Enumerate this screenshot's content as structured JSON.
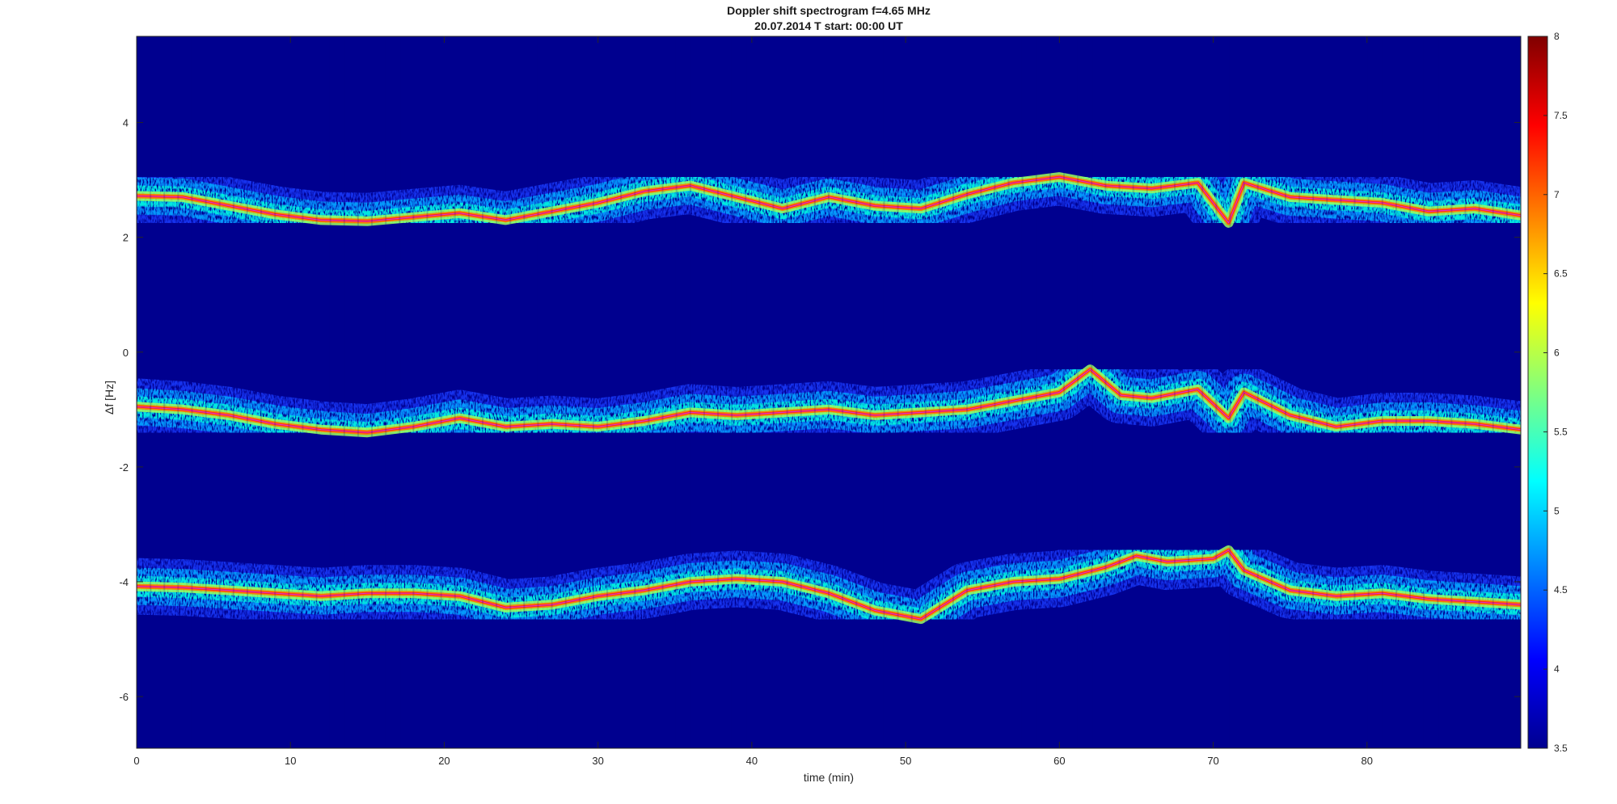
{
  "chart_data": {
    "type": "heatmap",
    "title": "Doppler shift spectrogram f=4.65 MHz",
    "subtitle": "20.07.2014   T start: 00:00 UT",
    "xlabel": "time (min)",
    "ylabel": "Δf [Hz]",
    "xlim": [
      0,
      90
    ],
    "ylim": [
      -6.9,
      5.5
    ],
    "xticks": [
      "0",
      "10",
      "20",
      "30",
      "40",
      "50",
      "60",
      "70",
      "80"
    ],
    "yticks": [
      "4",
      "2",
      "0",
      "-2",
      "-4",
      "-6"
    ],
    "grid": false,
    "background_color": "#00008f",
    "colorbar": {
      "range": [
        3.5,
        8
      ],
      "ticks": [
        "8",
        "7.5",
        "7",
        "6.5",
        "6",
        "5.5",
        "5",
        "4.5",
        "4",
        "3.5"
      ],
      "colormap": "jet"
    },
    "series": [
      {
        "x": [
          0,
          3,
          6,
          9,
          12,
          15,
          18,
          21,
          24,
          27,
          30,
          33,
          36,
          39,
          42,
          45,
          48,
          51,
          54,
          57,
          60,
          63,
          66,
          69,
          71,
          72,
          75,
          78,
          81,
          84,
          87,
          90
        ],
        "values": [
          2.72,
          2.7,
          2.55,
          2.4,
          2.3,
          2.28,
          2.35,
          2.42,
          2.3,
          2.45,
          2.6,
          2.8,
          2.9,
          2.7,
          2.5,
          2.7,
          2.55,
          2.5,
          2.75,
          2.95,
          3.05,
          2.9,
          2.85,
          2.95,
          2.25,
          2.95,
          2.7,
          2.65,
          2.6,
          2.45,
          2.5,
          2.38
        ]
      },
      {
        "x": [
          0,
          3,
          6,
          9,
          12,
          15,
          18,
          21,
          24,
          27,
          30,
          33,
          36,
          39,
          42,
          45,
          48,
          51,
          54,
          57,
          60,
          62,
          64,
          66,
          69,
          71,
          72,
          75,
          78,
          81,
          84,
          87,
          90
        ],
        "values": [
          -0.95,
          -1.0,
          -1.1,
          -1.25,
          -1.35,
          -1.4,
          -1.3,
          -1.15,
          -1.3,
          -1.25,
          -1.3,
          -1.2,
          -1.05,
          -1.1,
          -1.05,
          -1.0,
          -1.1,
          -1.05,
          -1.0,
          -0.85,
          -0.7,
          -0.3,
          -0.75,
          -0.8,
          -0.65,
          -1.15,
          -0.7,
          -1.1,
          -1.3,
          -1.2,
          -1.2,
          -1.25,
          -1.35
        ]
      },
      {
        "x": [
          0,
          3,
          6,
          9,
          12,
          15,
          18,
          21,
          24,
          27,
          30,
          33,
          36,
          39,
          42,
          45,
          48,
          51,
          54,
          57,
          60,
          63,
          65,
          67,
          70,
          71,
          72,
          75,
          78,
          81,
          84,
          87,
          90
        ],
        "values": [
          -4.08,
          -4.1,
          -4.15,
          -4.2,
          -4.25,
          -4.2,
          -4.2,
          -4.25,
          -4.45,
          -4.4,
          -4.25,
          -4.15,
          -4.0,
          -3.95,
          -4.0,
          -4.2,
          -4.5,
          -4.65,
          -4.15,
          -4.0,
          -3.95,
          -3.75,
          -3.55,
          -3.65,
          -3.6,
          -3.45,
          -3.8,
          -4.15,
          -4.25,
          -4.2,
          -4.3,
          -4.35,
          -4.4
        ]
      }
    ]
  }
}
